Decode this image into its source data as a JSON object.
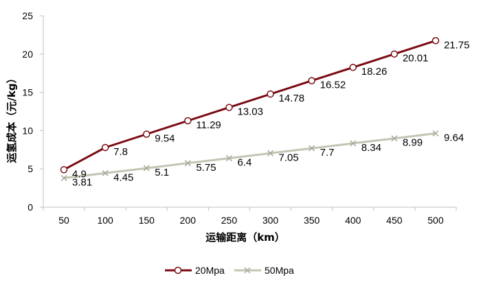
{
  "chart_data": {
    "type": "line",
    "title": "",
    "xlabel": "运输距离（km）",
    "ylabel": "运氢成本（元/kg）",
    "categories": [
      "50",
      "100",
      "150",
      "200",
      "250",
      "300",
      "350",
      "400",
      "450",
      "500"
    ],
    "ylim": [
      0,
      25
    ],
    "yticks": [
      "0",
      "5",
      "10",
      "15",
      "20",
      "25"
    ],
    "grid": false,
    "legend_position": "bottom",
    "series": [
      {
        "name": "20Mpa",
        "marker": "circle",
        "color": "#7a0a12",
        "values": [
          4.9,
          7.8,
          9.54,
          11.29,
          13.03,
          14.78,
          16.52,
          18.26,
          20.01,
          21.75
        ],
        "labels": [
          "4.9",
          "7.8",
          "9.54",
          "11.29",
          "13.03",
          "14.78",
          "16.52",
          "18.26",
          "20.01",
          "21.75"
        ]
      },
      {
        "name": "50Mpa",
        "marker": "x",
        "color": "#c4c4b4",
        "values": [
          3.81,
          4.45,
          5.1,
          5.75,
          6.4,
          7.05,
          7.7,
          8.34,
          8.99,
          9.64
        ],
        "labels": [
          "3.81",
          "4.45",
          "5.1",
          "5.75",
          "6.4",
          "7.05",
          "7.7",
          "8.34",
          "8.99",
          "9.64"
        ]
      }
    ]
  }
}
